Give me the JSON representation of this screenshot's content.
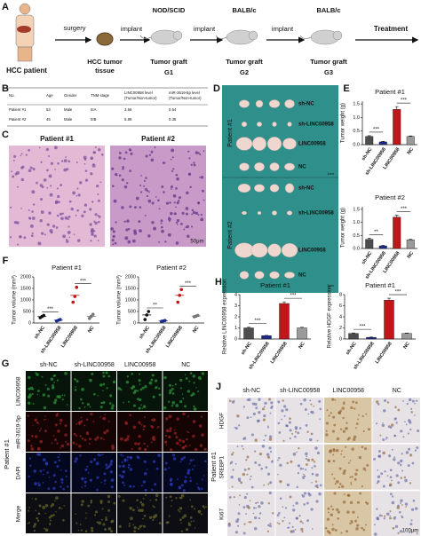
{
  "panel_labels": [
    "A",
    "B",
    "C",
    "D",
    "E",
    "F",
    "G",
    "H",
    "I",
    "J"
  ],
  "panel_a": {
    "patient": "HCC patient",
    "surgery": "surgery",
    "tissue": [
      "HCC tumor",
      "tissue"
    ],
    "steps": [
      {
        "arrow": "implant",
        "host": "NOD/SCID",
        "graft": "Tumor graft",
        "generation": "G1"
      },
      {
        "arrow": "implant",
        "host": "BALB/c",
        "graft": "Tumor graft",
        "generation": "G2"
      },
      {
        "arrow": "implant",
        "host": "BALB/c",
        "graft": "Tumor graft",
        "generation": "G3"
      }
    ],
    "treatment": "Treatment"
  },
  "panel_b": {
    "headers": [
      "No.",
      "Age",
      "Gender",
      "TNM stage",
      [
        "LINC00958 level",
        "(Tumor/Non-tumor)"
      ],
      [
        "miR-3619-5p level",
        "(Tumor/Non-tumor)"
      ]
    ],
    "rows": [
      [
        "Patient #1",
        53,
        "Male",
        "IIIA",
        3.56,
        0.54
      ],
      [
        "Patient #2",
        45,
        "Male",
        "IIIB",
        5.89,
        0.35
      ]
    ]
  },
  "panel_c": {
    "labels": [
      "Patient #1",
      "Patient #2"
    ],
    "scale": "50μm"
  },
  "panel_d": {
    "patients": [
      "Patient #1",
      "Patient #2"
    ],
    "groups": [
      "sh-NC",
      "sh-LINC00958",
      "LINC00958",
      "NC"
    ],
    "scale": "1cm"
  },
  "panel_g": {
    "patient": "Patient #1",
    "columns": [
      "sh-NC",
      "sh-LINC00958",
      "LINC00958",
      "NC"
    ],
    "rows": [
      "LINC00958",
      "miR-3619-5p",
      "DAPI",
      "Merge"
    ]
  },
  "panel_j": {
    "patient": "Patient #1",
    "columns": [
      "sh-NC",
      "sh-LINC00958",
      "LINC00958",
      "NC"
    ],
    "rows": [
      "HDGF",
      "SREBP1",
      "Ki67"
    ],
    "scale": "100μm"
  },
  "chart_data": [
    {
      "type": "bar",
      "title": "Patient #1",
      "ylabel": "Tumor weight (g)",
      "categories": [
        "sh-NC",
        "sh-LINC00958",
        "LINC00958",
        "NC"
      ],
      "values": [
        0.3,
        0.1,
        1.3,
        0.3
      ],
      "errors": [
        0.03,
        0.02,
        0.1,
        0.02
      ],
      "colors": [
        "#4d4d4d",
        "#1c2a8c",
        "#c01818",
        "#9a9a9a"
      ],
      "ylim": [
        0,
        1.6
      ],
      "yticks": [
        {
          "value": 0,
          "label": "0.0"
        },
        {
          "value": 0.5,
          "label": "0.5"
        },
        {
          "value": 1,
          "label": "1.0"
        },
        {
          "value": 1.5,
          "label": "1.5"
        }
      ],
      "annotations": [
        "***",
        "***"
      ]
    },
    {
      "type": "bar",
      "title": "Patient #2",
      "ylabel": "Tumor weight (g)",
      "categories": [
        "sh-NC",
        "sh-LINC00958",
        "LINC00958",
        "NC"
      ],
      "values": [
        0.35,
        0.1,
        1.2,
        0.33
      ],
      "errors": [
        0.04,
        0.02,
        0.08,
        0.02
      ],
      "colors": [
        "#4d4d4d",
        "#1c2a8c",
        "#c01818",
        "#9a9a9a"
      ],
      "ylim": [
        0,
        1.6
      ],
      "yticks": [
        {
          "value": 0,
          "label": "0.0"
        },
        {
          "value": 0.5,
          "label": "0.5"
        },
        {
          "value": 1,
          "label": "1.0"
        },
        {
          "value": 1.5,
          "label": "1.5"
        }
      ],
      "annotations": [
        "**",
        "***"
      ]
    },
    {
      "type": "dot",
      "title": "Patient #1",
      "ylabel": "Tumor volume (mm³)",
      "categories": [
        "sh-NC",
        "sh-LINC00958",
        "LINC00958",
        "NC"
      ],
      "values": [
        280,
        120,
        1200,
        290
      ],
      "points": [
        [
          230,
          280,
          330
        ],
        [
          90,
          120,
          150
        ],
        [
          900,
          1150,
          1550
        ],
        [
          200,
          290,
          380
        ]
      ],
      "colors": [
        "#111111",
        "#1c2a8c",
        "#c01818",
        "#777777"
      ],
      "ylim": [
        0,
        2000
      ],
      "yticks": [
        0,
        500,
        1000,
        1500,
        2000
      ],
      "annotations": [
        "***",
        "***"
      ]
    },
    {
      "type": "dot",
      "title": "Patient #2",
      "ylabel": "Tumor volume (mm³)",
      "categories": [
        "sh-NC",
        "sh-LINC00958",
        "LINC00958",
        "NC"
      ],
      "values": [
        350,
        90,
        1200,
        300
      ],
      "points": [
        [
          150,
          350,
          500
        ],
        [
          70,
          90,
          110
        ],
        [
          900,
          1200,
          1450
        ],
        [
          270,
          300,
          330
        ]
      ],
      "colors": [
        "#111111",
        "#1c2a8c",
        "#c01818",
        "#777777"
      ],
      "ylim": [
        0,
        2000
      ],
      "yticks": [
        0,
        500,
        1000,
        1500,
        2000
      ],
      "annotations": [
        "**",
        "***"
      ]
    },
    {
      "type": "bar",
      "title": "Patient #1",
      "ylabel": "Relative LINC00958 expression",
      "categories": [
        "sh-NC",
        "sh-LINC00958",
        "LINC00958",
        "NC"
      ],
      "values": [
        1.0,
        0.3,
        3.2,
        1.0
      ],
      "errors": [
        0.08,
        0.03,
        0.15,
        0.06
      ],
      "colors": [
        "#4d4d4d",
        "#1c2a8c",
        "#c01818",
        "#9a9a9a"
      ],
      "ylim": [
        0,
        4
      ],
      "yticks": [
        0,
        1,
        2,
        3,
        4
      ],
      "annotations": [
        "***",
        "***"
      ]
    },
    {
      "type": "bar",
      "title": "Patient #1",
      "ylabel": "Relative HDGF expression",
      "categories": [
        "sh-NC",
        "sh-LINC00958",
        "LINC00958",
        "NC"
      ],
      "values": [
        1.0,
        0.3,
        7.0,
        1.0
      ],
      "errors": [
        0.1,
        0.05,
        0.35,
        0.08
      ],
      "colors": [
        "#4d4d4d",
        "#1c2a8c",
        "#c01818",
        "#9a9a9a"
      ],
      "ylim": [
        0,
        8
      ],
      "yticks": [
        0,
        2,
        4,
        6,
        8
      ],
      "annotations": [
        "***",
        "***"
      ]
    }
  ]
}
